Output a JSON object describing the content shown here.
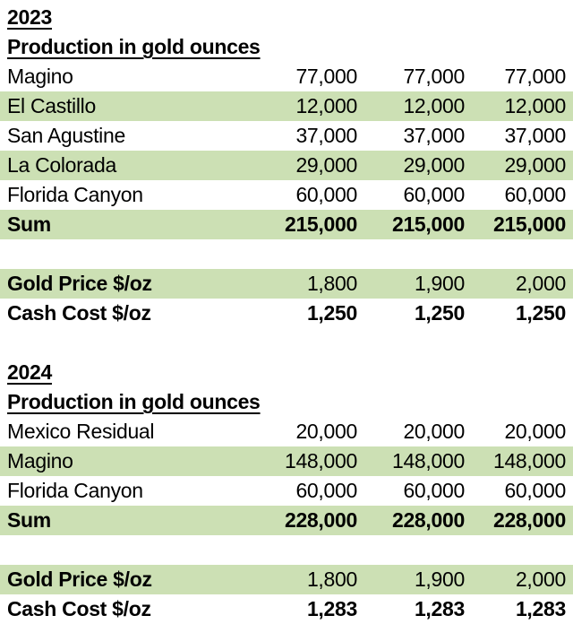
{
  "colors": {
    "row_highlight_green": "#CCE0B4",
    "text": "#000000",
    "background": "#FFFFFF"
  },
  "sections": [
    {
      "year": "2023",
      "subtitle": "Production in gold ounces",
      "rows": [
        {
          "name": "Magino",
          "values": [
            "77,000",
            "77,000",
            "77,000"
          ]
        },
        {
          "name": "El Castillo",
          "values": [
            "12,000",
            "12,000",
            "12,000"
          ]
        },
        {
          "name": "San Agustine",
          "values": [
            "37,000",
            "37,000",
            "37,000"
          ]
        },
        {
          "name": "La Colorada",
          "values": [
            "29,000",
            "29,000",
            "29,000"
          ]
        },
        {
          "name": "Florida Canyon",
          "values": [
            "60,000",
            "60,000",
            "60,000"
          ]
        },
        {
          "name": "Sum",
          "values": [
            "215,000",
            "215,000",
            "215,000"
          ]
        }
      ],
      "gold_price": {
        "label": "Gold Price $/oz",
        "values": [
          "1,800",
          "1,900",
          "2,000"
        ]
      },
      "cash_cost": {
        "label": "Cash Cost $/oz",
        "values": [
          "1,250",
          "1,250",
          "1,250"
        ]
      }
    },
    {
      "year": "2024",
      "subtitle": "Production in gold ounces",
      "rows": [
        {
          "name": "Mexico Residual",
          "values": [
            "20,000",
            "20,000",
            "20,000"
          ]
        },
        {
          "name": "Magino",
          "values": [
            "148,000",
            "148,000",
            "148,000"
          ]
        },
        {
          "name": "Florida Canyon",
          "values": [
            "60,000",
            "60,000",
            "60,000"
          ]
        },
        {
          "name": "Sum",
          "values": [
            "228,000",
            "228,000",
            "228,000"
          ]
        }
      ],
      "gold_price": {
        "label": "Gold Price $/oz",
        "values": [
          "1,800",
          "1,900",
          "2,000"
        ]
      },
      "cash_cost": {
        "label": "Cash Cost $/oz",
        "values": [
          "1,283",
          "1,283",
          "1,283"
        ]
      }
    }
  ]
}
